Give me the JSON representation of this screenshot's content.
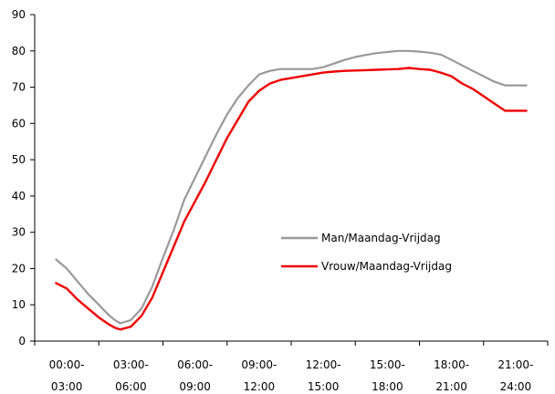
{
  "chart_data": {
    "type": "line",
    "title": "",
    "xlabel": "",
    "ylabel": "",
    "ylim": [
      0,
      90
    ],
    "yticks": [
      0,
      10,
      20,
      30,
      40,
      50,
      60,
      70,
      80,
      90
    ],
    "xlim": [
      0,
      24
    ],
    "x_tick_labels": [
      {
        "line1": "00:00-",
        "line2": "03:00"
      },
      {
        "line1": "03:00-",
        "line2": "06:00"
      },
      {
        "line1": "06:00-",
        "line2": "09:00"
      },
      {
        "line1": "09:00-",
        "line2": "12:00"
      },
      {
        "line1": "12:00-",
        "line2": "15:00"
      },
      {
        "line1": "15:00-",
        "line2": "18:00"
      },
      {
        "line1": "18:00-",
        "line2": "21:00"
      },
      {
        "line1": "21:00-",
        "line2": "24:00"
      }
    ],
    "grid": false,
    "legend_position": "center-right",
    "series": [
      {
        "name": "Man/Maandag-Vrijdag",
        "color": "#999999",
        "x": [
          1,
          1.5,
          2,
          2.5,
          3,
          3.25,
          3.5,
          3.75,
          4,
          4.5,
          5,
          5.5,
          6,
          6.5,
          7,
          7.5,
          8,
          8.5,
          9,
          9.5,
          10,
          10.5,
          11,
          11.5,
          12,
          12.5,
          13,
          13.5,
          14,
          14.5,
          15,
          15.5,
          16,
          16.5,
          17,
          17.5,
          18,
          18.5,
          19,
          19.5,
          20,
          20.5,
          21,
          21.5,
          22,
          22.5,
          23
        ],
        "values": [
          22.5,
          20,
          16.5,
          13,
          10,
          8.5,
          7,
          5.8,
          4.9,
          5.8,
          9,
          15,
          23,
          30.5,
          39,
          45,
          51,
          57,
          62.5,
          67,
          70.5,
          73.5,
          74.5,
          75,
          75,
          75,
          75,
          75.5,
          76.5,
          77.5,
          78.3,
          78.9,
          79.4,
          79.7,
          80,
          80,
          79.8,
          79.5,
          79,
          77.5,
          76,
          74.5,
          73,
          71.5,
          70.5,
          70.5,
          70.5
        ]
      },
      {
        "name": "Vrouw/Maandag-Vrijdag",
        "color": "#ee0000",
        "x": [
          1,
          1.5,
          2,
          2.5,
          3,
          3.25,
          3.5,
          3.75,
          4,
          4.5,
          5,
          5.5,
          6,
          6.5,
          7,
          7.5,
          8,
          8.5,
          9,
          9.5,
          10,
          10.5,
          11,
          11.5,
          12,
          12.5,
          13,
          13.5,
          14,
          14.5,
          15,
          15.5,
          16,
          16.5,
          17,
          17.5,
          18,
          18.5,
          19,
          19.5,
          20,
          20.5,
          21,
          21.5,
          22,
          22.5,
          23
        ],
        "values": [
          16,
          14.5,
          11.5,
          9,
          6.5,
          5.5,
          4.5,
          3.7,
          3.2,
          4,
          7,
          12,
          19,
          26,
          33,
          38.5,
          44,
          50,
          56,
          61,
          66,
          69,
          71,
          72,
          72.5,
          73,
          73.5,
          74,
          74.3,
          74.5,
          74.6,
          74.7,
          74.8,
          74.9,
          75,
          75.3,
          75,
          74.8,
          74,
          73,
          71,
          69.5,
          67.5,
          65.5,
          63.5,
          63.5,
          63.5
        ]
      }
    ]
  }
}
